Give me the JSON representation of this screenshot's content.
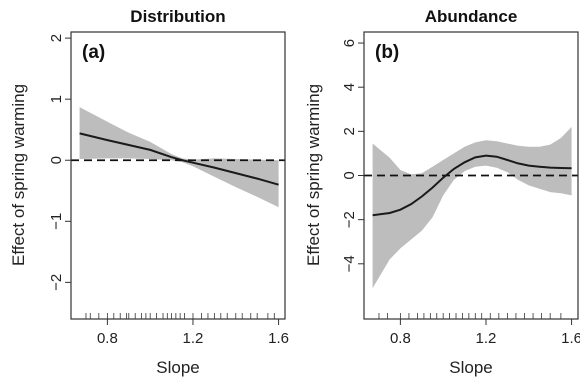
{
  "figure": {
    "shared_ylabel": "Effect of spring warming",
    "shared_xlabel": "Slope"
  },
  "chart_data": [
    {
      "type": "line",
      "panel_label": "(a)",
      "title": "Distribution",
      "xlabel": "Slope",
      "ylabel": "Effect of spring warming",
      "xlim": [
        0.63,
        1.63
      ],
      "ylim": [
        -2.6,
        2.1
      ],
      "x_ticks": [
        0.8,
        1.2,
        1.6
      ],
      "x_tick_labels": [
        "0.8",
        "1.2",
        "1.6"
      ],
      "y_ticks": [
        -2,
        -1,
        0,
        1,
        2
      ],
      "y_tick_labels": [
        "−2",
        "−1",
        "0",
        "1",
        "2"
      ],
      "reference_line": {
        "y": 0,
        "style": "dashed"
      },
      "series": [
        {
          "x": [
            0.67,
            0.8,
            0.9,
            1.0,
            1.1,
            1.15,
            1.2,
            1.3,
            1.4,
            1.5,
            1.6
          ],
          "y": [
            0.44,
            0.33,
            0.25,
            0.17,
            0.05,
            0.0,
            -0.04,
            -0.12,
            -0.21,
            -0.3,
            -0.4
          ],
          "lower": [
            0.02,
            0.03,
            0.03,
            0.02,
            0.0,
            -0.03,
            -0.1,
            -0.27,
            -0.44,
            -0.6,
            -0.77
          ],
          "upper": [
            0.87,
            0.63,
            0.45,
            0.3,
            0.1,
            0.03,
            0.01,
            0.03,
            0.02,
            0.01,
            0.0
          ]
        }
      ],
      "rug_x": [
        0.7,
        0.72,
        0.76,
        0.8,
        0.83,
        0.86,
        0.89,
        0.9,
        0.93,
        0.96,
        0.98,
        1.0,
        1.03,
        1.06,
        1.08,
        1.1,
        1.12,
        1.14,
        1.16,
        1.2,
        1.24,
        1.27,
        1.3,
        1.33,
        1.36,
        1.4,
        1.43,
        1.47,
        1.5,
        1.55,
        1.58
      ],
      "colors": {
        "band": "#bdbdbd",
        "line": "#1a1a1a",
        "axis": "#333333"
      }
    },
    {
      "type": "line",
      "panel_label": "(b)",
      "title": "Abundance",
      "xlabel": "Slope",
      "ylabel": "Effect of spring warming",
      "xlim": [
        0.63,
        1.63
      ],
      "ylim": [
        -6.5,
        6.5
      ],
      "x_ticks": [
        0.8,
        1.2,
        1.6
      ],
      "x_tick_labels": [
        "0.8",
        "1.2",
        "1.6"
      ],
      "y_ticks": [
        -4,
        -2,
        0,
        2,
        4,
        6
      ],
      "y_tick_labels": [
        "−4",
        "−2",
        "0",
        "2",
        "4",
        "6"
      ],
      "reference_line": {
        "y": 0,
        "style": "dashed"
      },
      "series": [
        {
          "x": [
            0.67,
            0.75,
            0.8,
            0.85,
            0.9,
            0.95,
            1.0,
            1.05,
            1.1,
            1.15,
            1.2,
            1.25,
            1.3,
            1.35,
            1.4,
            1.45,
            1.5,
            1.55,
            1.6
          ],
          "y": [
            -1.8,
            -1.7,
            -1.55,
            -1.3,
            -0.95,
            -0.55,
            -0.1,
            0.3,
            0.6,
            0.82,
            0.9,
            0.85,
            0.7,
            0.55,
            0.45,
            0.4,
            0.36,
            0.34,
            0.33
          ],
          "lower": [
            -5.1,
            -3.8,
            -3.3,
            -2.9,
            -2.5,
            -1.9,
            -0.9,
            -0.2,
            0.2,
            0.4,
            0.45,
            0.35,
            0.15,
            -0.2,
            -0.45,
            -0.6,
            -0.75,
            -0.8,
            -0.9
          ],
          "upper": [
            1.45,
            0.8,
            0.25,
            0.05,
            0.1,
            0.4,
            0.7,
            1.0,
            1.3,
            1.5,
            1.6,
            1.55,
            1.45,
            1.35,
            1.3,
            1.3,
            1.4,
            1.7,
            2.2
          ]
        }
      ],
      "rug_x": [
        0.7,
        0.74,
        0.8,
        0.84,
        0.88,
        0.91,
        0.94,
        0.97,
        1.0,
        1.03,
        1.06,
        1.09,
        1.12,
        1.15,
        1.18,
        1.22,
        1.26,
        1.3,
        1.34,
        1.38,
        1.42,
        1.46,
        1.5,
        1.55
      ],
      "colors": {
        "band": "#bdbdbd",
        "line": "#1a1a1a",
        "axis": "#333333"
      }
    }
  ]
}
